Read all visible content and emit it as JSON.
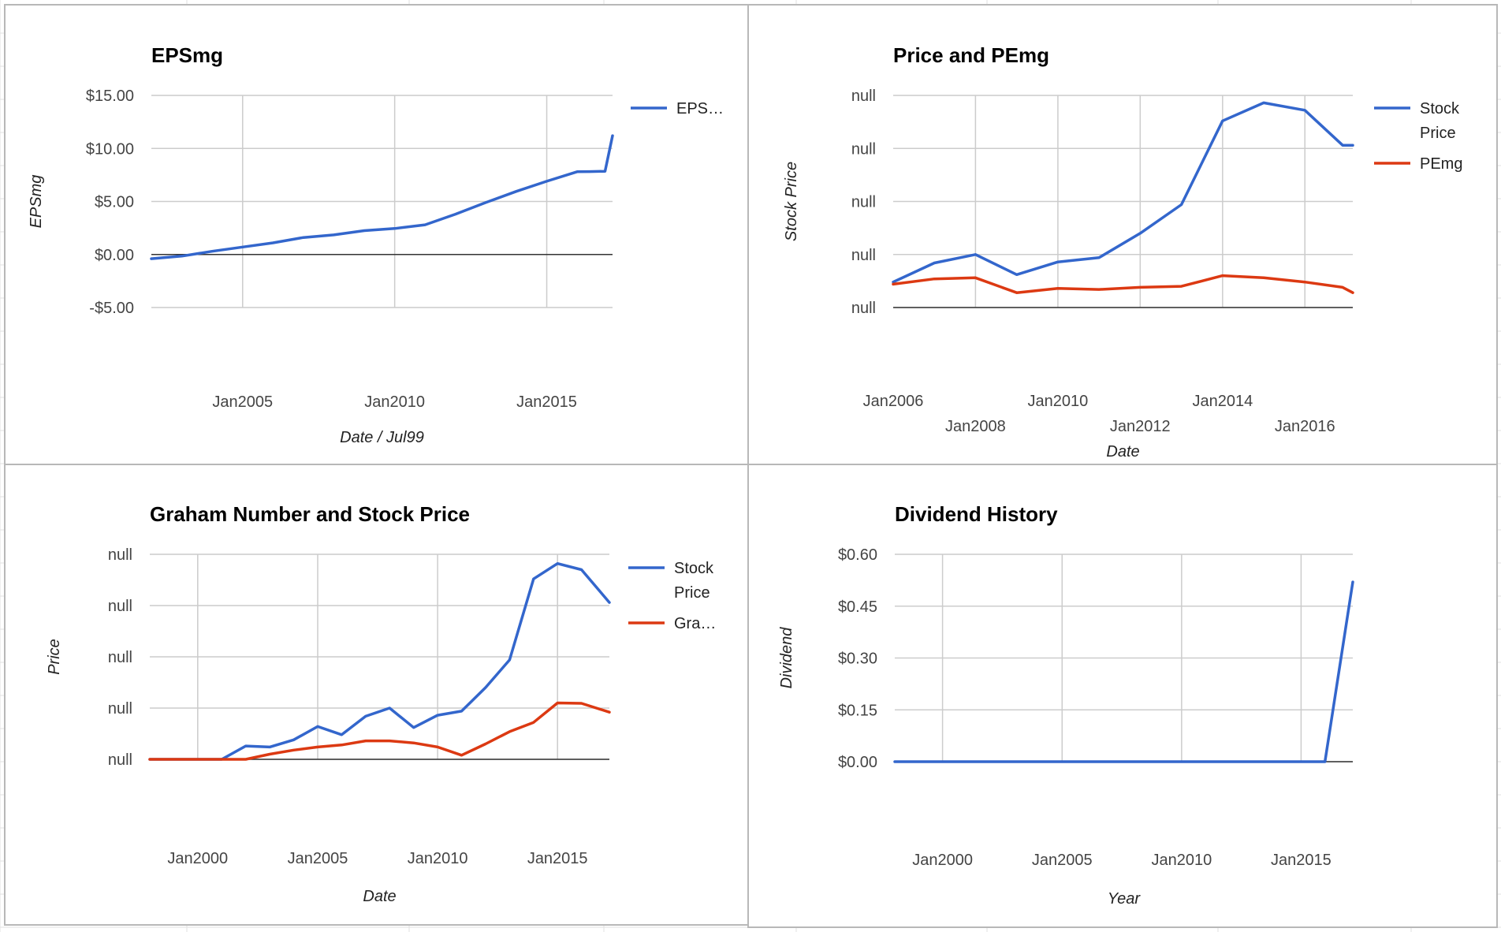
{
  "colors": {
    "series_blue": "#3366cc",
    "series_red": "#dc3912",
    "grid": "#cccccc",
    "baseline": "#333333",
    "sheet_lines": "#e2e2e2"
  },
  "chart_data": [
    {
      "id": "epsmg",
      "type": "line",
      "title": "EPSmg",
      "xlabel": "Date / Jul99",
      "ylabel": "EPSmg",
      "x_axis": "date",
      "xlim": [
        "2002-01-01",
        "2017-03-01"
      ],
      "ylim": [
        -5,
        15
      ],
      "yticks": [
        15,
        10,
        5,
        0,
        -5
      ],
      "ytick_labels": [
        "$15.00",
        "$10.00",
        "$5.00",
        "$0.00",
        "-$5.00"
      ],
      "xticks": [
        "2005-01-01",
        "2010-01-01",
        "2015-01-01"
      ],
      "xtick_labels": [
        "Jan2005",
        "Jan2010",
        "Jan2015"
      ],
      "grid": true,
      "legend_position": "right",
      "series": [
        {
          "name": "EPS…",
          "color": "#3366cc",
          "x": [
            "2002-01-01",
            "2003-01-01",
            "2004-01-01",
            "2005-01-01",
            "2006-01-01",
            "2007-01-01",
            "2008-01-01",
            "2009-01-01",
            "2010-01-01",
            "2011-01-01",
            "2012-01-01",
            "2013-01-01",
            "2014-01-01",
            "2015-01-01",
            "2016-01-01",
            "2016-06-01",
            "2016-12-01",
            "2017-03-01"
          ],
          "values": [
            -0.4,
            -0.15,
            0.3,
            0.7,
            1.1,
            1.6,
            1.85,
            2.25,
            2.45,
            2.8,
            3.8,
            4.9,
            5.95,
            6.9,
            7.8,
            7.82,
            7.85,
            11.2
          ]
        }
      ]
    },
    {
      "id": "price-pemg",
      "type": "line",
      "title": "Price and PEmg",
      "xlabel": "Date",
      "ylabel": "Stock Price",
      "x_axis": "date",
      "xlim": [
        "2006-01-01",
        "2017-03-01"
      ],
      "ylim": [
        0,
        100
      ],
      "yticks": [
        100,
        75,
        50,
        25,
        0
      ],
      "ytick_labels": [
        "null",
        "null",
        "null",
        "null",
        "null"
      ],
      "xticks": [
        "2006-01-01",
        "2008-01-01",
        "2010-01-01",
        "2012-01-01",
        "2014-01-01",
        "2016-01-01"
      ],
      "xtick_labels": [
        "Jan2006",
        "Jan2008",
        "Jan2010",
        "Jan2012",
        "Jan2014",
        "Jan2016"
      ],
      "grid": true,
      "legend_position": "right",
      "series": [
        {
          "name": "Stock Price",
          "color": "#3366cc",
          "x": [
            "2006-01-01",
            "2007-01-01",
            "2008-01-01",
            "2009-01-01",
            "2010-01-01",
            "2011-01-01",
            "2012-01-01",
            "2013-01-01",
            "2014-01-01",
            "2015-01-01",
            "2016-01-01",
            "2016-12-01",
            "2017-03-01"
          ],
          "values": [
            12,
            21,
            25,
            15.5,
            21.5,
            23.5,
            35,
            48.5,
            88,
            96.5,
            93,
            76.5,
            76.5
          ]
        },
        {
          "name": "PEmg",
          "color": "#dc3912",
          "x": [
            "2006-01-01",
            "2007-01-01",
            "2008-01-01",
            "2009-01-01",
            "2010-01-01",
            "2011-01-01",
            "2012-01-01",
            "2013-01-01",
            "2014-01-01",
            "2015-01-01",
            "2016-01-01",
            "2016-12-01",
            "2017-03-01"
          ],
          "values": [
            11,
            13.5,
            14,
            7,
            9,
            8.5,
            9.5,
            10,
            15,
            14,
            12,
            9.5,
            7
          ]
        }
      ]
    },
    {
      "id": "graham-price",
      "type": "line",
      "title": "Graham Number and Stock Price",
      "xlabel": "Date",
      "ylabel": "Price",
      "x_axis": "date",
      "xlim": [
        "1998-01-01",
        "2017-03-01"
      ],
      "ylim": [
        0,
        100
      ],
      "yticks": [
        100,
        75,
        50,
        25,
        0
      ],
      "ytick_labels": [
        "null",
        "null",
        "null",
        "null",
        "null"
      ],
      "xticks": [
        "2000-01-01",
        "2005-01-01",
        "2010-01-01",
        "2015-01-01"
      ],
      "xtick_labels": [
        "Jan2000",
        "Jan2005",
        "Jan2010",
        "Jan2015"
      ],
      "grid": true,
      "legend_position": "right",
      "series": [
        {
          "name": "Stock Price",
          "color": "#3366cc",
          "x": [
            "1998-01-01",
            "1999-01-01",
            "2000-01-01",
            "2001-01-01",
            "2002-01-01",
            "2003-01-01",
            "2004-01-01",
            "2005-01-01",
            "2006-01-01",
            "2007-01-01",
            "2008-01-01",
            "2009-01-01",
            "2010-01-01",
            "2011-01-01",
            "2012-01-01",
            "2013-01-01",
            "2014-01-01",
            "2015-01-01",
            "2016-01-01",
            "2017-03-01"
          ],
          "values": [
            0,
            0,
            0,
            0,
            6.5,
            6,
            9.5,
            16,
            12,
            21,
            25,
            15.5,
            21.5,
            23.5,
            35,
            48.5,
            88,
            95.5,
            92.5,
            76.5
          ]
        },
        {
          "name": "Gra…",
          "color": "#dc3912",
          "x": [
            "1998-01-01",
            "1999-01-01",
            "2000-01-01",
            "2001-01-01",
            "2002-01-01",
            "2003-01-01",
            "2004-01-01",
            "2005-01-01",
            "2006-01-01",
            "2007-01-01",
            "2008-01-01",
            "2009-01-01",
            "2010-01-01",
            "2011-01-01",
            "2012-01-01",
            "2013-01-01",
            "2014-01-01",
            "2015-01-01",
            "2016-01-01",
            "2017-03-01"
          ],
          "values": [
            0,
            0,
            0,
            0,
            0,
            2.5,
            4.5,
            6,
            7,
            9,
            9,
            8,
            6,
            2,
            7.5,
            13.5,
            18,
            27.5,
            27.3,
            23
          ]
        }
      ]
    },
    {
      "id": "dividend-history",
      "type": "line",
      "title": "Dividend History",
      "xlabel": "Year",
      "ylabel": "Dividend",
      "x_axis": "date",
      "xlim": [
        "1998-01-01",
        "2017-03-01"
      ],
      "ylim": [
        0,
        0.6
      ],
      "yticks": [
        0.6,
        0.45,
        0.3,
        0.15,
        0
      ],
      "ytick_labels": [
        "$0.60",
        "$0.45",
        "$0.30",
        "$0.15",
        "$0.00"
      ],
      "xticks": [
        "2000-01-01",
        "2005-01-01",
        "2010-01-01",
        "2015-01-01"
      ],
      "xtick_labels": [
        "Jan2000",
        "Jan2005",
        "Jan2010",
        "Jan2015"
      ],
      "grid": true,
      "legend_position": "none",
      "series": [
        {
          "color": "#3366cc",
          "x": [
            "1998-01-01",
            "2016-01-01",
            "2017-03-01"
          ],
          "values": [
            0,
            0,
            0.52
          ]
        }
      ]
    }
  ]
}
